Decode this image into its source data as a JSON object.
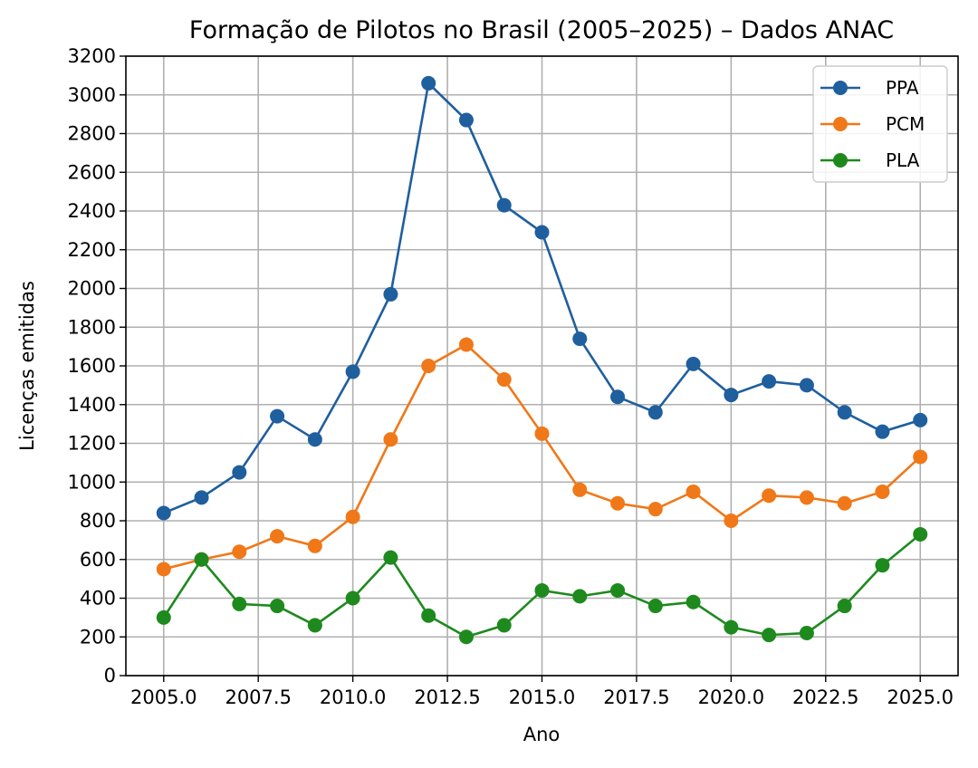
{
  "chart_data": {
    "type": "line",
    "title": "Formação de Pilotos no Brasil (2005–2025) – Dados ANAC",
    "xlabel": "Ano",
    "ylabel": "Licenças emitidas",
    "xlim": [
      2004,
      2026
    ],
    "ylim": [
      0,
      3200
    ],
    "grid": true,
    "legend_position": "top-right",
    "x_ticks": [
      "2005.0",
      "2007.5",
      "2010.0",
      "2012.5",
      "2015.0",
      "2017.5",
      "2020.0",
      "2022.5",
      "2025.0"
    ],
    "y_ticks": [
      "0",
      "200",
      "400",
      "600",
      "800",
      "1000",
      "1200",
      "1400",
      "1600",
      "1800",
      "2000",
      "2200",
      "2400",
      "2600",
      "2800",
      "3000",
      "3200"
    ],
    "x": [
      2005,
      2006,
      2007,
      2008,
      2009,
      2010,
      2011,
      2012,
      2013,
      2014,
      2015,
      2016,
      2017,
      2018,
      2019,
      2020,
      2021,
      2022,
      2023,
      2024,
      2025
    ],
    "series": [
      {
        "name": "PPA",
        "color": "#1f5f9e",
        "values": [
          840,
          920,
          1050,
          1340,
          1220,
          1570,
          1970,
          3060,
          2870,
          2430,
          2290,
          1740,
          1440,
          1360,
          1610,
          1450,
          1520,
          1500,
          1360,
          1260,
          1320
        ]
      },
      {
        "name": "PCM",
        "color": "#f07818",
        "values": [
          550,
          600,
          640,
          720,
          670,
          820,
          1220,
          1600,
          1710,
          1530,
          1250,
          960,
          890,
          860,
          950,
          800,
          930,
          920,
          890,
          950,
          1130
        ]
      },
      {
        "name": "PLA",
        "color": "#1e8a1e",
        "values": [
          300,
          600,
          370,
          360,
          260,
          400,
          610,
          310,
          200,
          260,
          440,
          410,
          440,
          360,
          380,
          250,
          210,
          220,
          360,
          570,
          730
        ]
      }
    ]
  }
}
